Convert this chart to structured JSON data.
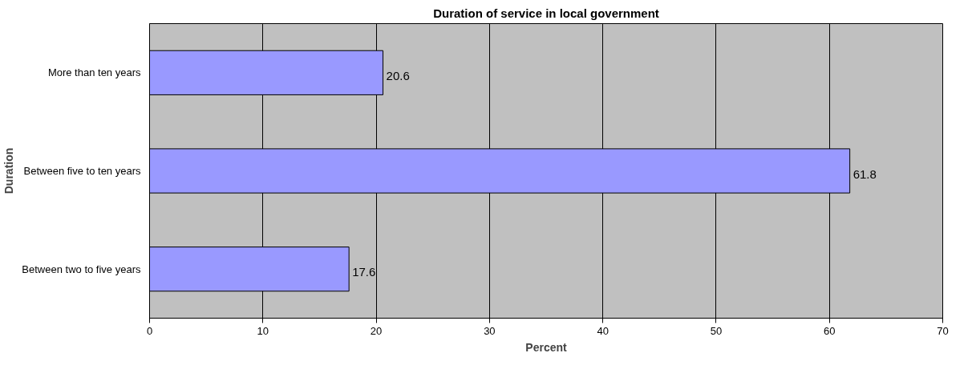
{
  "chart_data": {
    "type": "bar",
    "orientation": "horizontal",
    "title": "Duration of service in local government",
    "xlabel": "Percent",
    "ylabel": "Duration",
    "categories": [
      "More than ten years",
      "Between five to ten years",
      "Between two to five years"
    ],
    "values": [
      20.6,
      61.8,
      17.6
    ],
    "color": "#9999ff",
    "data_labels": true,
    "xlim": [
      0,
      70
    ],
    "xticks": [
      0,
      10,
      20,
      30,
      40,
      50,
      60,
      70
    ],
    "grid": "x"
  }
}
